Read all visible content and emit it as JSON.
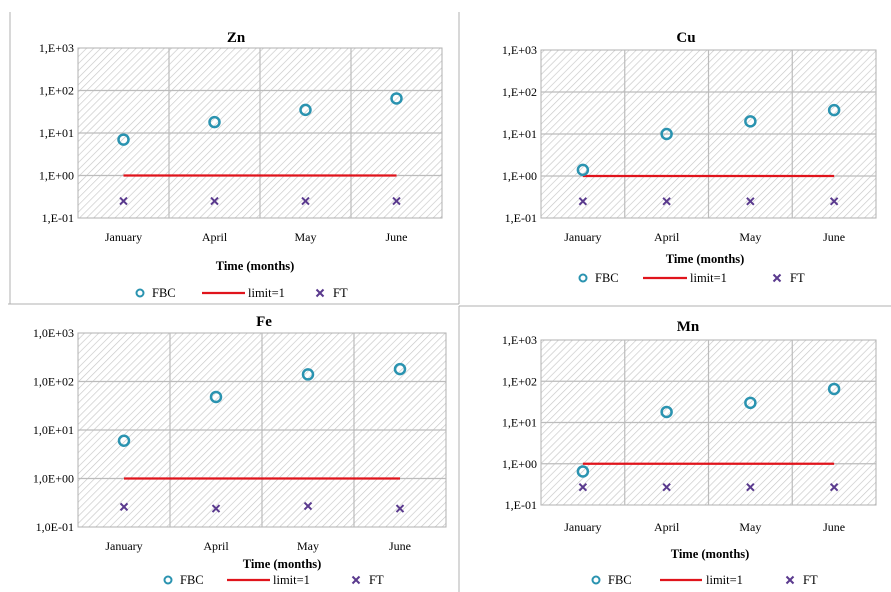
{
  "figure": {
    "colors": {
      "fbc": "#2a93b0",
      "limit": "#e0141c",
      "ft": "#5a3a8e",
      "grid": "#bcbcbc",
      "hatch": "#c7c7c7",
      "frame": "#b0b0b0"
    }
  },
  "chart_data": [
    {
      "type": "scatter",
      "title": "Zn",
      "xlabel": "Time (months)",
      "ylabel": "",
      "categories": [
        "January",
        "April",
        "May",
        "June"
      ],
      "y_scale": "log",
      "ylim": [
        0.1,
        1000
      ],
      "yticks": [
        "1,E-01",
        "1,E+00",
        "1,E+01",
        "1,E+02",
        "1,E+03"
      ],
      "grid": true,
      "legend_position": "bottom",
      "series": [
        {
          "name": "FBC",
          "marker": "open-circle",
          "values": [
            7,
            18,
            35,
            65
          ]
        },
        {
          "name": "limit=1",
          "marker": "line",
          "values": [
            1,
            1,
            1,
            1
          ]
        },
        {
          "name": "FT",
          "marker": "x",
          "values": [
            0.25,
            0.25,
            0.25,
            0.25
          ]
        }
      ]
    },
    {
      "type": "scatter",
      "title": "Cu",
      "xlabel": "Time (months)",
      "ylabel": "",
      "categories": [
        "January",
        "April",
        "May",
        "June"
      ],
      "y_scale": "log",
      "ylim": [
        0.1,
        1000
      ],
      "yticks": [
        "1,E-01",
        "1,E+00",
        "1,E+01",
        "1,E+02",
        "1,E+03"
      ],
      "grid": true,
      "legend_position": "bottom",
      "series": [
        {
          "name": "FBC",
          "marker": "open-circle",
          "values": [
            1.4,
            10,
            20,
            37
          ]
        },
        {
          "name": "limit=1",
          "marker": "line",
          "values": [
            1,
            1,
            1,
            1
          ]
        },
        {
          "name": "FT",
          "marker": "x",
          "values": [
            0.25,
            0.25,
            0.25,
            0.25
          ]
        }
      ]
    },
    {
      "type": "scatter",
      "title": "Fe",
      "xlabel": "Time (months)",
      "ylabel": "",
      "categories": [
        "January",
        "April",
        "May",
        "June"
      ],
      "y_scale": "log",
      "ylim": [
        0.1,
        1000
      ],
      "yticks": [
        "1,0E-01",
        "1,0E+00",
        "1,0E+01",
        "1,0E+02",
        "1,0E+03"
      ],
      "grid": true,
      "legend_position": "bottom",
      "series": [
        {
          "name": "FBC",
          "marker": "open-circle",
          "values": [
            6,
            48,
            140,
            180
          ]
        },
        {
          "name": "limit=1",
          "marker": "line",
          "values": [
            1,
            1,
            1,
            1
          ]
        },
        {
          "name": "FT",
          "marker": "x",
          "values": [
            0.26,
            0.24,
            0.27,
            0.24
          ]
        }
      ]
    },
    {
      "type": "scatter",
      "title": "Mn",
      "xlabel": "Time (months)",
      "ylabel": "",
      "categories": [
        "January",
        "April",
        "May",
        "June"
      ],
      "y_scale": "log",
      "ylim": [
        0.1,
        1000
      ],
      "yticks": [
        "1,E-01",
        "1,E+00",
        "1,E+01",
        "1,E+02",
        "1,E+03"
      ],
      "grid": true,
      "legend_position": "bottom",
      "series": [
        {
          "name": "FBC",
          "marker": "open-circle",
          "values": [
            0.65,
            18,
            30,
            65
          ]
        },
        {
          "name": "limit=1",
          "marker": "line",
          "values": [
            1,
            1,
            1,
            1
          ]
        },
        {
          "name": "FT",
          "marker": "x",
          "values": [
            0.27,
            0.27,
            0.27,
            0.27
          ]
        }
      ]
    }
  ]
}
